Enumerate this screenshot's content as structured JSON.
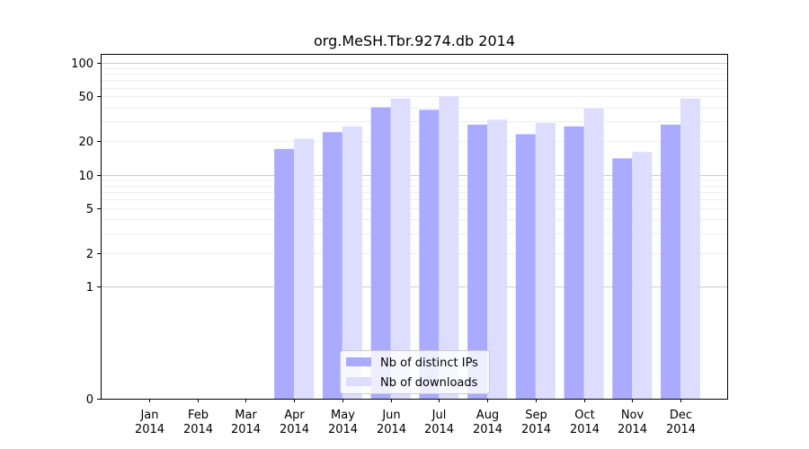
{
  "chart_data": {
    "type": "bar",
    "title": "org.MeSH.Tbr.9274.db 2014",
    "xlabel": "",
    "ylabel": "",
    "y_scale": "symlog",
    "ylim": [
      0,
      120
    ],
    "y_ticks": [
      0,
      1,
      2,
      5,
      10,
      20,
      50,
      100
    ],
    "grid": true,
    "legend_position": "bottom-center",
    "categories": [
      {
        "month": "Jan",
        "year": "2014"
      },
      {
        "month": "Feb",
        "year": "2014"
      },
      {
        "month": "Mar",
        "year": "2014"
      },
      {
        "month": "Apr",
        "year": "2014"
      },
      {
        "month": "May",
        "year": "2014"
      },
      {
        "month": "Jun",
        "year": "2014"
      },
      {
        "month": "Jul",
        "year": "2014"
      },
      {
        "month": "Aug",
        "year": "2014"
      },
      {
        "month": "Sep",
        "year": "2014"
      },
      {
        "month": "Oct",
        "year": "2014"
      },
      {
        "month": "Nov",
        "year": "2014"
      },
      {
        "month": "Dec",
        "year": "2014"
      }
    ],
    "series": [
      {
        "name": "Nb of distinct IPs",
        "color": "#aaaaff",
        "values": [
          0,
          0,
          0,
          17,
          24,
          40,
          38,
          28,
          23,
          27,
          14,
          28
        ]
      },
      {
        "name": "Nb of downloads",
        "color": "#ddddff",
        "values": [
          0,
          0,
          0,
          21,
          27,
          48,
          50,
          31,
          29,
          39,
          16,
          48
        ]
      }
    ]
  }
}
